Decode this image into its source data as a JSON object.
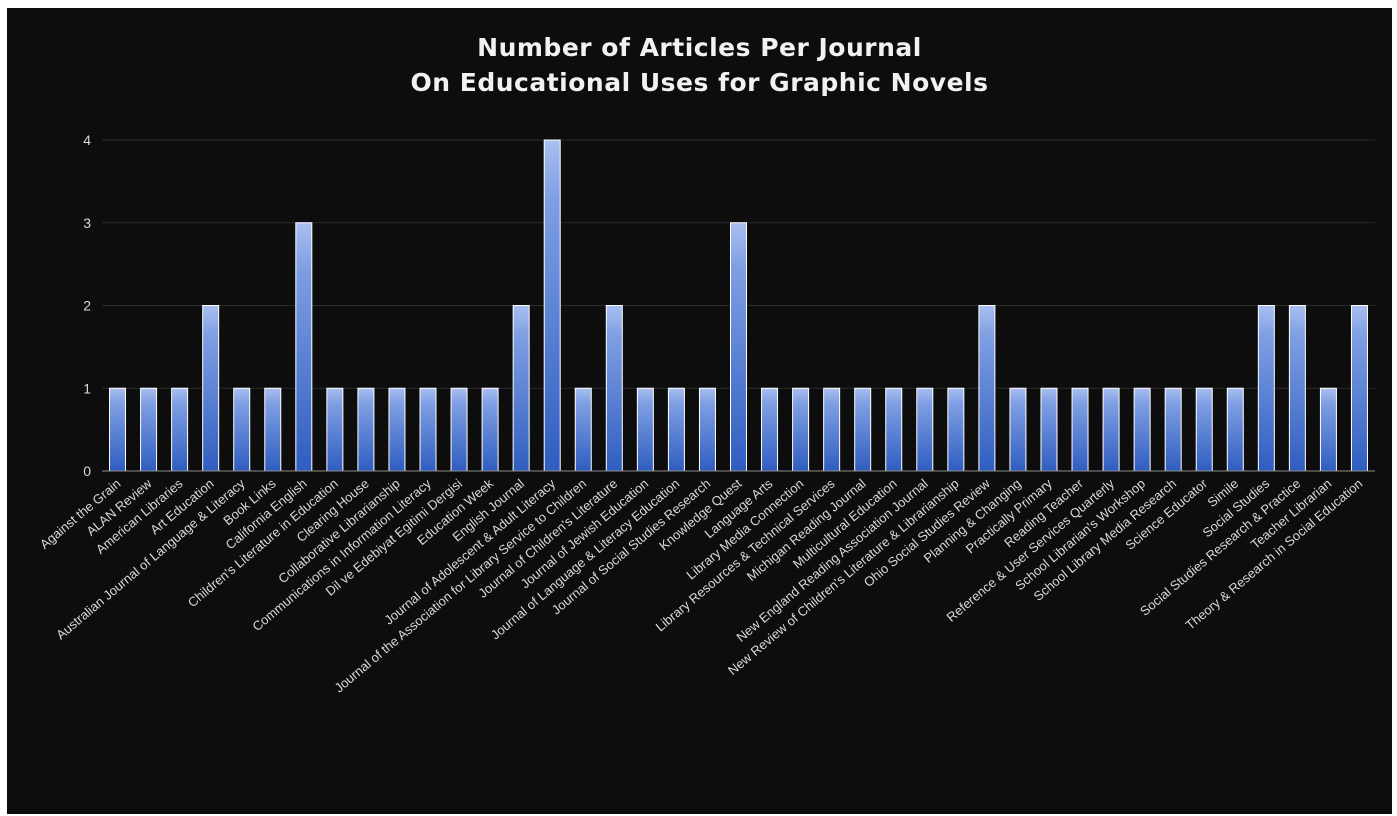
{
  "chart_data": {
    "type": "bar",
    "title": [
      "Number of Articles Per Journal",
      "On Educational Uses for Graphic Novels"
    ],
    "xlabel": "",
    "ylabel": "",
    "ylim": [
      0,
      4
    ],
    "yticks": [
      0,
      1,
      2,
      3,
      4
    ],
    "grid": true,
    "legend": "none",
    "bar_color": "#4472C4",
    "categories": [
      "Against the Grain",
      "ALAN Review",
      "American Libraries",
      "Art Education",
      "Australian Journal of Language & Literacy",
      "Book Links",
      "California English",
      "Children's Literature in Education",
      "Clearing House",
      "Collaborative Librarianship",
      "Communications in Information Literacy",
      "Dil ve Edebiyat Egitimi Dergisi",
      "Education Week",
      "English Journal",
      "Journal of Adolescent & Adult Literacy",
      "Journal of the Association  for Library Service to Children",
      "Journal of Children's Literature",
      "Journal of Jewish Education",
      "Journal of Language & Literacy Education",
      "Journal of Social Studies Research",
      "Knowledge Quest",
      "Language Arts",
      "Library Media Connection",
      "Library Resources & Technical Services",
      "Michigan Reading Journal",
      "Multicultural Education",
      "New England Reading Association Journal",
      "New Review of Children's Literature & Librarianship",
      "Ohio Social Studies Review",
      "Planning & Changing",
      "Practically Primary",
      "Reading Teacher",
      "Reference & User Services Quarterly",
      "School Librarian's Workshop",
      "School Library Media Research",
      "Science Educator",
      "Simile",
      "Social Studies",
      "Social Studies Research & Practice",
      "Teacher Librarian",
      "Theory & Research in Social Education"
    ],
    "values": [
      1,
      1,
      1,
      2,
      1,
      1,
      3,
      1,
      1,
      1,
      1,
      1,
      1,
      2,
      4,
      1,
      2,
      1,
      1,
      1,
      3,
      1,
      1,
      1,
      1,
      1,
      1,
      1,
      2,
      1,
      1,
      1,
      1,
      1,
      1,
      1,
      1,
      2,
      2,
      1,
      2
    ]
  }
}
